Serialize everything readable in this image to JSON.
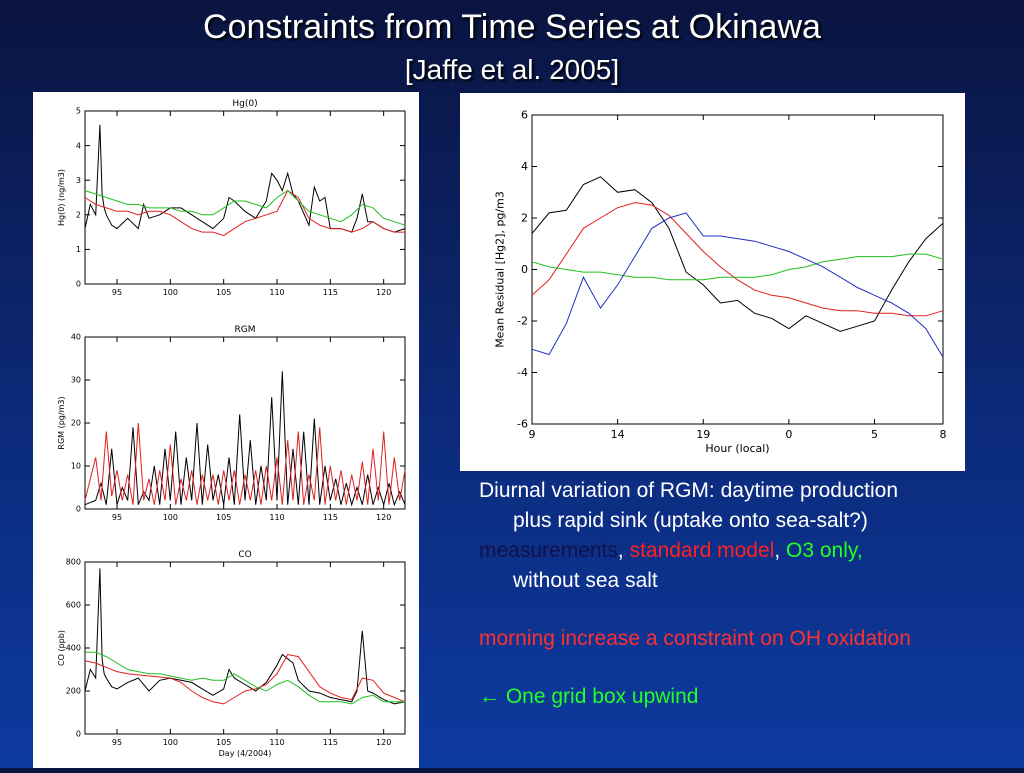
{
  "slide": {
    "title": "Constraints from Time Series at Okinawa",
    "subtitle": "[Jaffe et al. 2005]"
  },
  "text": {
    "line1": "Diurnal variation of RGM: daytime production",
    "line2": "plus rapid sink (uptake onto sea-salt?)",
    "legend_measurements": "measurements",
    "legend_sep1": ", ",
    "legend_standard": "standard model",
    "legend_sep2": ", ",
    "legend_o3": "O3 only,",
    "line4": "without sea salt",
    "morning": "morning increase a constraint on OH oxidation",
    "arrow": "←",
    "upwind": " One grid box upwind"
  },
  "colors": {
    "measurements": "#000000",
    "standard_model": "#e02020",
    "o3_only": "#20c020",
    "fourth_series": "#2030c0"
  },
  "chart_data": [
    {
      "type": "line",
      "title": "Hg(0)",
      "ylabel": "Hg(0) (ng/m3)",
      "xlabel": "",
      "xlim": [
        92,
        122
      ],
      "ylim": [
        0,
        5
      ],
      "xticks": [
        95,
        100,
        105,
        110,
        115,
        120
      ],
      "yticks": [
        0,
        1,
        2,
        3,
        4,
        5
      ],
      "series": [
        {
          "role": "measurements",
          "x": [
            92,
            92.5,
            93,
            93.4,
            93.6,
            93.8,
            94,
            94.5,
            95,
            96,
            97,
            97.5,
            98,
            99,
            100,
            101,
            102,
            103,
            104,
            105,
            105.5,
            106,
            107,
            108,
            109,
            109.5,
            110,
            110.5,
            111,
            111.5,
            112,
            113,
            113.5,
            114,
            114.5,
            115,
            116,
            117,
            117.5,
            118,
            118.5,
            119,
            120,
            121,
            122
          ],
          "y": [
            1.6,
            2.3,
            2.0,
            4.6,
            2.6,
            2.2,
            2.0,
            1.7,
            1.6,
            1.9,
            1.6,
            2.3,
            1.9,
            2.0,
            2.2,
            2.2,
            2.0,
            1.8,
            1.6,
            1.9,
            2.5,
            2.4,
            2.1,
            1.9,
            2.4,
            3.2,
            3.0,
            2.7,
            3.2,
            2.6,
            2.4,
            1.7,
            2.8,
            2.4,
            2.5,
            1.6,
            1.6,
            1.5,
            1.9,
            2.6,
            1.8,
            1.8,
            1.6,
            1.5,
            1.6
          ]
        },
        {
          "role": "standard model",
          "x": [
            92,
            93,
            94,
            95,
            96,
            97,
            98,
            99,
            100,
            101,
            102,
            103,
            104,
            105,
            106,
            107,
            108,
            109,
            110,
            111,
            112,
            113,
            114,
            115,
            116,
            117,
            118,
            119,
            120,
            121,
            122
          ],
          "y": [
            2.5,
            2.3,
            2.2,
            2.1,
            2.1,
            2.0,
            2.1,
            2.1,
            2.0,
            1.8,
            1.6,
            1.5,
            1.5,
            1.4,
            1.6,
            1.8,
            1.9,
            2.0,
            2.1,
            2.7,
            2.5,
            1.9,
            1.7,
            1.6,
            1.6,
            1.5,
            1.6,
            1.8,
            1.6,
            1.5,
            1.5
          ]
        },
        {
          "role": "O3 only, without sea salt",
          "x": [
            92,
            93,
            94,
            95,
            96,
            97,
            98,
            99,
            100,
            101,
            102,
            103,
            104,
            105,
            106,
            107,
            108,
            109,
            110,
            111,
            112,
            113,
            114,
            115,
            116,
            117,
            118,
            119,
            120,
            121,
            122
          ],
          "y": [
            2.7,
            2.6,
            2.5,
            2.4,
            2.3,
            2.3,
            2.2,
            2.2,
            2.2,
            2.1,
            2.1,
            2.0,
            2.0,
            2.2,
            2.4,
            2.4,
            2.3,
            2.2,
            2.5,
            2.7,
            2.4,
            2.1,
            2.0,
            1.9,
            1.8,
            2.0,
            2.3,
            2.2,
            1.9,
            1.8,
            1.7
          ]
        }
      ]
    },
    {
      "type": "line",
      "title": "RGM",
      "ylabel": "RGM (pg/m3)",
      "xlabel": "",
      "xlim": [
        92,
        122
      ],
      "ylim": [
        0,
        40
      ],
      "xticks": [
        95,
        100,
        105,
        110,
        115,
        120
      ],
      "yticks": [
        0,
        10,
        20,
        30,
        40
      ],
      "series": [
        {
          "role": "measurements",
          "x": [
            92,
            93,
            93.5,
            94,
            94.5,
            95,
            95.5,
            96,
            96.5,
            97,
            97.5,
            98,
            98.5,
            99,
            99.5,
            100,
            100.5,
            101,
            101.5,
            102,
            102.5,
            103,
            103.5,
            104,
            104.5,
            105,
            105.5,
            106,
            106.5,
            107,
            107.5,
            108,
            108.5,
            109,
            109.5,
            110,
            110.5,
            111,
            111.5,
            112,
            112.5,
            113,
            113.5,
            114,
            114.5,
            115,
            115.5,
            116,
            116.5,
            117,
            117.5,
            118,
            118.5,
            119,
            119.5,
            120,
            120.5,
            121,
            121.5,
            122
          ],
          "y": [
            1,
            2,
            6,
            1,
            14,
            1,
            5,
            2,
            19,
            1,
            4,
            2,
            10,
            1,
            14,
            2,
            18,
            1,
            12,
            2,
            20,
            1,
            15,
            2,
            8,
            1,
            12,
            1,
            22,
            2,
            16,
            1,
            10,
            2,
            26,
            2,
            32,
            1,
            14,
            1,
            18,
            1,
            21,
            1,
            10,
            2,
            7,
            1,
            6,
            1,
            5,
            1,
            8,
            1,
            5,
            1,
            6,
            1,
            4,
            1
          ]
        },
        {
          "role": "standard model",
          "x": [
            92,
            93,
            93.5,
            94,
            94.5,
            95,
            95.5,
            96,
            96.5,
            97,
            97.5,
            98,
            98.5,
            99,
            99.5,
            100,
            100.5,
            101,
            101.5,
            102,
            102.5,
            103,
            103.5,
            104,
            104.5,
            105,
            105.5,
            106,
            106.5,
            107,
            107.5,
            108,
            108.5,
            109,
            109.5,
            110,
            110.5,
            111,
            111.5,
            112,
            112.5,
            113,
            113.5,
            114,
            114.5,
            115,
            115.5,
            116,
            116.5,
            117,
            117.5,
            118,
            118.5,
            119,
            119.5,
            120,
            120.5,
            121,
            121.5,
            122
          ],
          "y": [
            2,
            12,
            2,
            18,
            3,
            9,
            2,
            8,
            1,
            20,
            2,
            7,
            1,
            9,
            2,
            15,
            1,
            7,
            2,
            9,
            1,
            8,
            2,
            8,
            1,
            9,
            2,
            9,
            1,
            8,
            2,
            9,
            1,
            10,
            2,
            12,
            1,
            16,
            2,
            18,
            1,
            8,
            2,
            19,
            1,
            10,
            2,
            9,
            1,
            8,
            2,
            11,
            1,
            14,
            2,
            18,
            1,
            12,
            2,
            9
          ]
        }
      ]
    },
    {
      "type": "line",
      "title": "CO",
      "ylabel": "CO (ppb)",
      "xlabel": "Day (4/2004)",
      "xlim": [
        92,
        122
      ],
      "ylim": [
        0,
        800
      ],
      "xticks": [
        95,
        100,
        105,
        110,
        115,
        120
      ],
      "yticks": [
        0,
        200,
        400,
        600,
        800
      ],
      "series": [
        {
          "role": "measurements",
          "x": [
            92,
            92.5,
            93,
            93.4,
            93.6,
            93.8,
            94,
            94.5,
            95,
            96,
            97,
            98,
            99,
            100,
            101,
            102,
            103,
            104,
            105,
            105.5,
            106,
            107,
            108,
            109,
            110,
            110.5,
            111,
            111.5,
            112,
            113,
            114,
            115,
            116,
            117,
            117.5,
            118,
            118.5,
            119,
            120,
            121,
            122
          ],
          "y": [
            200,
            300,
            260,
            770,
            350,
            280,
            260,
            220,
            210,
            240,
            260,
            200,
            250,
            260,
            250,
            240,
            210,
            180,
            210,
            300,
            260,
            230,
            200,
            240,
            320,
            370,
            350,
            330,
            250,
            200,
            190,
            170,
            160,
            150,
            200,
            480,
            200,
            190,
            160,
            140,
            150
          ]
        },
        {
          "role": "standard model",
          "x": [
            92,
            93,
            94,
            95,
            96,
            97,
            98,
            99,
            100,
            101,
            102,
            103,
            104,
            105,
            106,
            107,
            108,
            109,
            110,
            111,
            112,
            113,
            114,
            115,
            116,
            117,
            118,
            119,
            120,
            121,
            122
          ],
          "y": [
            340,
            330,
            310,
            290,
            280,
            275,
            270,
            265,
            260,
            240,
            200,
            170,
            150,
            140,
            170,
            200,
            210,
            230,
            280,
            370,
            360,
            290,
            220,
            190,
            170,
            160,
            260,
            250,
            190,
            170,
            150
          ]
        },
        {
          "role": "O3 only, without sea salt",
          "x": [
            92,
            93,
            94,
            95,
            96,
            97,
            98,
            99,
            100,
            101,
            102,
            103,
            104,
            105,
            106,
            107,
            108,
            109,
            110,
            111,
            112,
            113,
            114,
            115,
            116,
            117,
            118,
            119,
            120,
            121,
            122
          ],
          "y": [
            380,
            380,
            360,
            330,
            300,
            290,
            280,
            280,
            270,
            260,
            250,
            260,
            250,
            250,
            280,
            250,
            220,
            200,
            230,
            250,
            220,
            180,
            150,
            150,
            150,
            140,
            170,
            180,
            150,
            150,
            150
          ]
        }
      ]
    },
    {
      "type": "line",
      "title": "",
      "ylabel": "Mean Residual [Hg2], pg/m3",
      "xlabel": "Hour (local)",
      "xlim": [
        0,
        24
      ],
      "ylim": [
        -6,
        6
      ],
      "xticks": [
        0,
        5,
        10,
        15,
        20,
        24
      ],
      "xtick_labels": [
        "9",
        "14",
        "19",
        "0",
        "5",
        "8"
      ],
      "yticks": [
        -6,
        -4,
        -2,
        0,
        2,
        4,
        6
      ],
      "series": [
        {
          "role": "measurements",
          "x": [
            0,
            1,
            2,
            3,
            4,
            5,
            6,
            7,
            8,
            9,
            10,
            11,
            12,
            13,
            14,
            15,
            16,
            17,
            18,
            19,
            20,
            21,
            22,
            23,
            24
          ],
          "y": [
            1.4,
            2.2,
            2.3,
            3.3,
            3.6,
            3.0,
            3.1,
            2.6,
            1.6,
            -0.1,
            -0.6,
            -1.3,
            -1.2,
            -1.7,
            -1.9,
            -2.3,
            -1.8,
            -2.1,
            -2.4,
            -2.2,
            -2.0,
            -0.8,
            0.3,
            1.2,
            1.8
          ]
        },
        {
          "role": "standard model",
          "x": [
            0,
            1,
            2,
            3,
            4,
            5,
            6,
            7,
            8,
            9,
            10,
            11,
            12,
            13,
            14,
            15,
            16,
            17,
            18,
            19,
            20,
            21,
            22,
            23,
            24
          ],
          "y": [
            -1.0,
            -0.4,
            0.6,
            1.6,
            2.0,
            2.4,
            2.6,
            2.5,
            2.1,
            1.4,
            0.7,
            0.1,
            -0.4,
            -0.8,
            -1.0,
            -1.1,
            -1.3,
            -1.5,
            -1.6,
            -1.6,
            -1.7,
            -1.7,
            -1.8,
            -1.8,
            -1.6
          ]
        },
        {
          "role": "O3 only, without sea salt",
          "x": [
            0,
            1,
            2,
            3,
            4,
            5,
            6,
            7,
            8,
            9,
            10,
            11,
            12,
            13,
            14,
            15,
            16,
            17,
            18,
            19,
            20,
            21,
            22,
            23,
            24
          ],
          "y": [
            0.3,
            0.1,
            0,
            -0.1,
            -0.1,
            -0.2,
            -0.3,
            -0.3,
            -0.4,
            -0.4,
            -0.4,
            -0.3,
            -0.3,
            -0.3,
            -0.2,
            0,
            0.1,
            0.3,
            0.4,
            0.5,
            0.5,
            0.5,
            0.6,
            0.6,
            0.4
          ]
        },
        {
          "role": "fourth series",
          "x": [
            0,
            1,
            2,
            3,
            4,
            5,
            6,
            7,
            8,
            9,
            10,
            11,
            12,
            13,
            14,
            15,
            16,
            17,
            18,
            19,
            20,
            21,
            22,
            23,
            24
          ],
          "y": [
            -3.1,
            -3.3,
            -2.1,
            -0.3,
            -1.5,
            -0.6,
            0.5,
            1.6,
            2.0,
            2.2,
            1.3,
            1.3,
            1.2,
            1.1,
            0.9,
            0.7,
            0.4,
            0.1,
            -0.3,
            -0.7,
            -1.0,
            -1.3,
            -1.7,
            -2.3,
            -3.4
          ]
        }
      ]
    }
  ]
}
